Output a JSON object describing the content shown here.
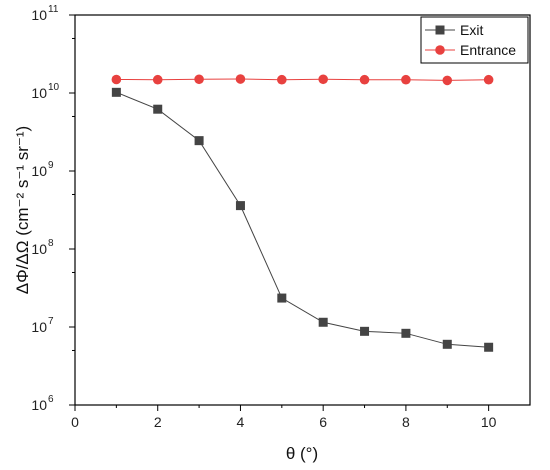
{
  "chart_data": {
    "type": "line",
    "xlabel": "θ (°)",
    "ylabel": "ΔΦ/ΔΩ (cm⁻² s⁻¹ sr⁻¹)",
    "xlim": [
      0,
      11
    ],
    "ylim": [
      1000000,
      100000000000
    ],
    "y_scale": "log",
    "x_ticks": [
      0,
      2,
      4,
      6,
      8,
      10
    ],
    "y_ticks": [
      {
        "value": 1000000,
        "base": "10",
        "exp": "6"
      },
      {
        "value": 10000000,
        "base": "10",
        "exp": "7"
      },
      {
        "value": 100000000,
        "base": "10",
        "exp": "8"
      },
      {
        "value": 1000000000,
        "base": "10",
        "exp": "9"
      },
      {
        "value": 10000000000,
        "base": "10",
        "exp": "10"
      },
      {
        "value": 100000000000,
        "base": "10",
        "exp": "11"
      }
    ],
    "grid": false,
    "legend_position": "top-right",
    "series": [
      {
        "name": "Exit",
        "color": "#444444",
        "marker": "square",
        "x": [
          1,
          2,
          3,
          4,
          5,
          6,
          7,
          8,
          9,
          10
        ],
        "y": [
          10200000000,
          6200000000,
          2450000000,
          360000000,
          23500000,
          11500000,
          8800000,
          8300000,
          6000000,
          5500000
        ]
      },
      {
        "name": "Entrance",
        "color": "#e8413f",
        "marker": "circle",
        "x": [
          1,
          2,
          3,
          4,
          5,
          6,
          7,
          8,
          9,
          10
        ],
        "y": [
          14900000000,
          14800000000,
          15000000000,
          15100000000,
          14800000000,
          15000000000,
          14800000000,
          14800000000,
          14500000000,
          14800000000
        ]
      }
    ]
  }
}
